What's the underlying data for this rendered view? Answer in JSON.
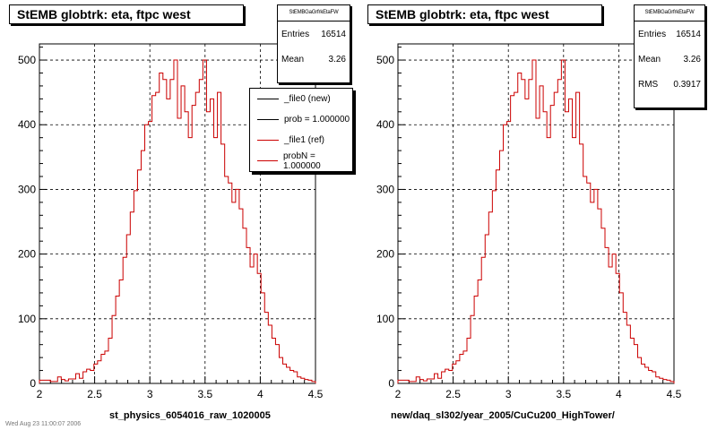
{
  "chart_data": [
    {
      "type": "line",
      "title": "StEMB globtrk: eta, ftpc west",
      "xlabel": "st_physics_6054016_raw_1020005",
      "ylabel": "",
      "xlim": [
        2,
        4.5
      ],
      "ylim": [
        0,
        525
      ],
      "grid": true,
      "x_ticks": [
        "2",
        "2.5",
        "3",
        "3.5",
        "4",
        "4.5"
      ],
      "y_ticks": [
        "0",
        "100",
        "200",
        "300",
        "400",
        "500"
      ],
      "stats": {
        "header": "StEMBGaGrfrkEtaFW",
        "rows": [
          {
            "label": "Entries",
            "value": "16514"
          },
          {
            "label": "Mean",
            "value": "3.26"
          }
        ]
      },
      "legend": {
        "placement": "top-right",
        "entries": [
          {
            "label": "_file0 (new)",
            "color": "#000000"
          },
          {
            "label": "prob = 1.000000",
            "color": "#000000"
          },
          {
            "label": "_file1 (ref)",
            "color": "#cc0000"
          },
          {
            "label": "probN = 1.000000",
            "color": "#cc0000"
          }
        ]
      },
      "series": [
        {
          "color": "#cc0000",
          "bin_edges": [
            2.0,
            2.5
          ],
          "values": [
            5,
            5,
            5,
            3,
            3,
            10,
            6,
            4,
            7,
            7,
            15,
            8,
            18,
            22,
            20,
            30,
            35,
            45,
            50,
            70,
            105,
            135,
            160,
            195,
            230,
            265,
            298,
            330,
            360,
            400,
            405,
            445,
            450,
            480,
            470,
            440,
            470,
            500,
            410,
            460,
            420,
            380,
            430,
            450,
            470,
            500,
            420,
            440,
            380,
            450,
            370,
            320,
            310,
            280,
            300,
            270,
            240,
            210,
            180,
            200,
            170,
            140,
            110,
            90,
            70,
            60,
            40,
            30,
            25,
            20,
            18,
            10,
            8,
            6,
            5,
            3
          ]
        }
      ]
    },
    {
      "type": "line",
      "title": "StEMB globtrk: eta, ftpc west",
      "xlabel": "new/daq_sl302/year_2005/CuCu200_HighTower/",
      "ylabel": "",
      "xlim": [
        2,
        4.5
      ],
      "ylim": [
        0,
        525
      ],
      "grid": true,
      "x_ticks": [
        "2",
        "2.5",
        "3",
        "3.5",
        "4",
        "4.5"
      ],
      "y_ticks": [
        "0",
        "100",
        "200",
        "300",
        "400",
        "500"
      ],
      "stats": {
        "header": "StEMBGaGrfrkEtaFW",
        "rows": [
          {
            "label": "Entries",
            "value": "16514"
          },
          {
            "label": "Mean",
            "value": "3.26"
          },
          {
            "label": "RMS",
            "value": "0.3917"
          }
        ]
      },
      "series": [
        {
          "color": "#cc0000",
          "values": [
            5,
            5,
            5,
            3,
            3,
            10,
            6,
            4,
            7,
            7,
            15,
            8,
            18,
            22,
            20,
            30,
            35,
            45,
            50,
            70,
            105,
            135,
            160,
            195,
            230,
            265,
            298,
            330,
            360,
            400,
            405,
            445,
            450,
            480,
            470,
            440,
            470,
            500,
            410,
            460,
            420,
            380,
            430,
            450,
            470,
            500,
            420,
            440,
            380,
            450,
            370,
            320,
            310,
            280,
            300,
            270,
            240,
            210,
            180,
            200,
            170,
            140,
            110,
            90,
            70,
            60,
            40,
            30,
            25,
            20,
            18,
            10,
            8,
            6,
            5,
            3
          ]
        }
      ]
    }
  ],
  "footer_text": "Wed Aug 23 11:00:07 2006"
}
